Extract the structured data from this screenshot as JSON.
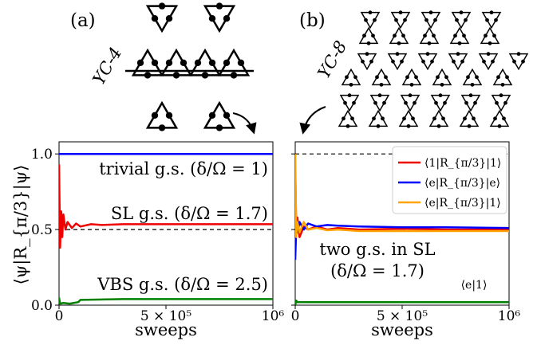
{
  "panels": {
    "a": {
      "label": "(a)",
      "lattice_label": "YC-4"
    },
    "b": {
      "label": "(b)",
      "lattice_label": "YC-8"
    }
  },
  "ylabel": "⟨ψ|R_{π/3}|ψ⟩",
  "chart_data": [
    {
      "type": "line",
      "xlabel": "sweeps",
      "xlim": [
        0,
        1000000
      ],
      "ylim": [
        0,
        1.08
      ],
      "xticks": [
        "0",
        "5 × 10⁵",
        "10⁶"
      ],
      "yticks": [
        "0.0",
        "0.5",
        "1.0"
      ],
      "reference_line": 0.5,
      "annotations": [
        "trivial g.s. (δ/Ω = 1)",
        "SL g.s. (δ/Ω = 1.7)",
        "VBS g.s. (δ/Ω = 2.5)"
      ],
      "series": [
        {
          "color": "#0000ff",
          "x": [
            0,
            10000,
            1000000
          ],
          "y": [
            1.0,
            1.0,
            1.0
          ]
        },
        {
          "color": "#ee0000",
          "x": [
            0,
            5000,
            10000,
            15000,
            20000,
            30000,
            40000,
            60000,
            80000,
            100000,
            150000,
            200000,
            300000,
            500000,
            700000,
            1000000
          ],
          "y": [
            0.93,
            0.38,
            0.62,
            0.45,
            0.6,
            0.5,
            0.55,
            0.51,
            0.54,
            0.52,
            0.535,
            0.53,
            0.535,
            0.535,
            0.535,
            0.535
          ]
        },
        {
          "color": "#008000",
          "x": [
            0,
            5000,
            20000,
            50000,
            90000,
            100000,
            300000,
            500000,
            700000,
            1000000
          ],
          "y": [
            0.05,
            0.01,
            0.015,
            0.01,
            0.02,
            0.035,
            0.04,
            0.04,
            0.04,
            0.04
          ]
        }
      ]
    },
    {
      "type": "line",
      "xlabel": "sweeps",
      "xlim": [
        0,
        1000000
      ],
      "ylim": [
        0,
        1.08
      ],
      "xticks": [
        "0",
        "5 × 10⁵",
        "10⁶"
      ],
      "yticks": [
        "0.0",
        "0.5",
        "1.0"
      ],
      "reference_line": 1.0,
      "annotations": [
        "two g.s. in SL",
        "(δ/Ω = 1.7)",
        "⟨e|1⟩"
      ],
      "legend_position": "top-right",
      "series": [
        {
          "name": "⟨1|R_{π/3}|1⟩",
          "color": "#ee0000",
          "x": [
            0,
            5000,
            10000,
            20000,
            40000,
            60000,
            100000,
            150000,
            200000,
            300000,
            500000,
            700000,
            1000000
          ],
          "y": [
            0.9,
            0.5,
            0.58,
            0.45,
            0.52,
            0.5,
            0.52,
            0.5,
            0.51,
            0.5,
            0.505,
            0.5,
            0.5
          ]
        },
        {
          "name": "⟨e|R_{π/3}|e⟩",
          "color": "#0000ff",
          "x": [
            0,
            5000,
            10000,
            20000,
            40000,
            60000,
            100000,
            150000,
            200000,
            300000,
            500000,
            700000,
            1000000
          ],
          "y": [
            0.3,
            0.52,
            0.48,
            0.55,
            0.5,
            0.54,
            0.52,
            0.53,
            0.525,
            0.52,
            0.515,
            0.515,
            0.51
          ]
        },
        {
          "name": "⟨e|R_{π/3}|1⟩",
          "color": "#ffa500",
          "x": [
            0,
            5000,
            10000,
            20000,
            40000,
            60000,
            100000,
            150000,
            200000,
            300000,
            500000,
            700000,
            1000000
          ],
          "y": [
            1.0,
            0.45,
            0.55,
            0.48,
            0.55,
            0.5,
            0.51,
            0.495,
            0.5,
            0.49,
            0.49,
            0.49,
            0.49
          ]
        },
        {
          "color": "#008000",
          "x": [
            0,
            5000,
            10000,
            100000,
            500000,
            1000000
          ],
          "y": [
            0.0,
            0.03,
            0.02,
            0.02,
            0.02,
            0.02
          ]
        }
      ]
    }
  ]
}
